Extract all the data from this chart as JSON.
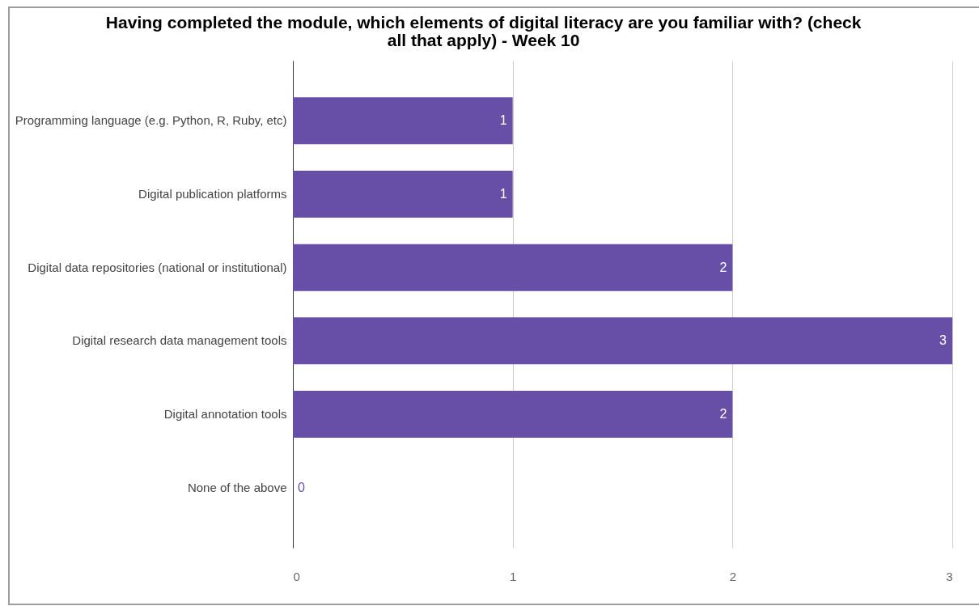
{
  "chart_data": {
    "type": "bar",
    "orientation": "horizontal",
    "title": "Having completed the module, which elements of digital literacy are you familiar with? (check all that apply) - Week 10",
    "categories": [
      "Programming language (e.g. Python, R, Ruby, etc)",
      "Digital publication platforms",
      "Digital data repositories (national or institutional)",
      "Digital research data management tools",
      "Digital annotation tools",
      "None of the above"
    ],
    "values": [
      1,
      1,
      2,
      3,
      2,
      0
    ],
    "color": "#674ea7",
    "xlim": [
      0,
      3
    ],
    "xticks": [
      0,
      1,
      2,
      3
    ],
    "grid": "x",
    "data_labels": true
  }
}
